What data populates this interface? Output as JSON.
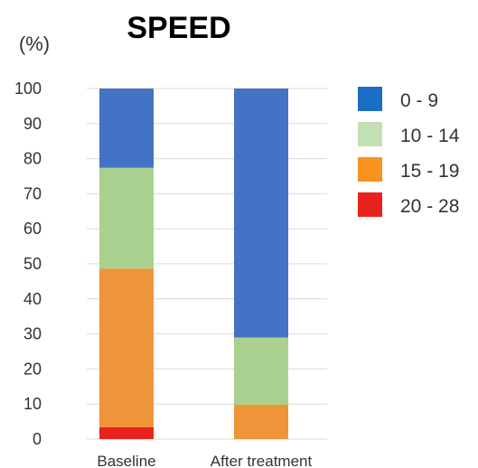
{
  "chart_data": {
    "type": "bar",
    "stacked": true,
    "title": "SPEED",
    "ylabel": "(%)",
    "xlabel": "",
    "ylim": [
      0,
      100
    ],
    "yticks": [
      0,
      10,
      20,
      30,
      40,
      50,
      60,
      70,
      80,
      90,
      100
    ],
    "grid": true,
    "legend_position": "right",
    "categories": [
      "Baseline",
      "After treatment"
    ],
    "series": [
      {
        "name": "20 - 28",
        "color": "#e8221d",
        "values": [
          3.4,
          0
        ]
      },
      {
        "name": "15 - 19",
        "color": "#f0943a",
        "values": [
          45.2,
          9.8
        ]
      },
      {
        "name": "10 - 14",
        "color": "#a9d08e",
        "values": [
          28.8,
          19.2
        ]
      },
      {
        "name": "0 - 9",
        "color": "#4472c4",
        "values": [
          22.6,
          71.0
        ]
      }
    ],
    "legend_order": [
      "0 - 9",
      "10 - 14",
      "15 - 19",
      "20 - 28"
    ],
    "legend_swatch_colors": {
      "0 - 9": "#1a6fc4",
      "10 - 14": "#c5dfb4",
      "15 - 19": "#f7931e",
      "20 - 28": "#e8221d"
    }
  }
}
